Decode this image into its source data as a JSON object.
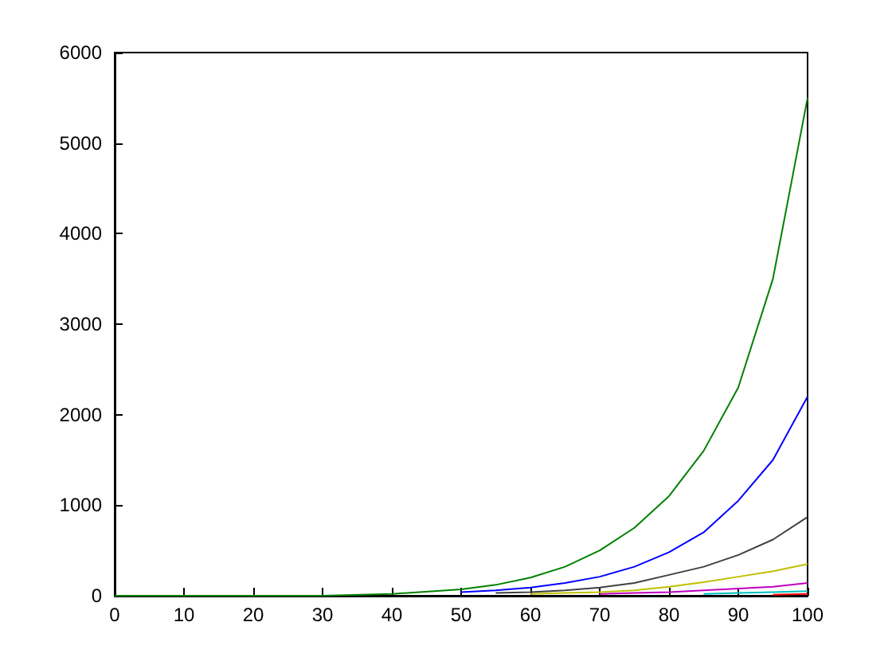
{
  "chart_data": {
    "type": "line",
    "x": [
      0,
      10,
      20,
      30,
      40,
      50,
      55,
      60,
      65,
      70,
      75,
      80,
      85,
      90,
      95,
      100
    ],
    "series": [
      {
        "color": "#ff0000",
        "values": [
          null,
          null,
          null,
          null,
          null,
          null,
          null,
          null,
          null,
          null,
          null,
          null,
          null,
          null,
          10,
          20
        ]
      },
      {
        "color": "#00bfbf",
        "values": [
          null,
          null,
          null,
          null,
          null,
          null,
          null,
          null,
          null,
          null,
          null,
          null,
          20,
          30,
          40,
          50
        ]
      },
      {
        "color": "#bf00bf",
        "values": [
          null,
          null,
          null,
          null,
          null,
          null,
          null,
          null,
          null,
          20,
          30,
          40,
          60,
          80,
          100,
          140
        ]
      },
      {
        "color": "#bfbf00",
        "values": [
          null,
          null,
          null,
          null,
          null,
          null,
          null,
          20,
          30,
          40,
          60,
          100,
          150,
          210,
          270,
          350
        ]
      },
      {
        "color": "#404040",
        "values": [
          null,
          null,
          null,
          null,
          null,
          null,
          30,
          40,
          60,
          90,
          140,
          230,
          320,
          450,
          620,
          870
        ]
      },
      {
        "color": "#0000ff",
        "values": [
          null,
          null,
          null,
          null,
          null,
          40,
          60,
          90,
          140,
          210,
          320,
          480,
          700,
          1050,
          1500,
          2200
        ]
      },
      {
        "color": "#008000",
        "values": [
          0,
          0,
          0,
          0,
          20,
          70,
          120,
          200,
          320,
          500,
          750,
          1100,
          1600,
          2300,
          3500,
          5500
        ]
      }
    ],
    "xlim": [
      0,
      100
    ],
    "xticks": [
      0,
      10,
      20,
      30,
      40,
      50,
      60,
      70,
      80,
      90,
      100
    ],
    "ylim": [
      0,
      6000
    ],
    "yticks": [
      0,
      1000,
      2000,
      3000,
      4000,
      5000,
      6000
    ],
    "grid": false,
    "marker": "none",
    "line_style": "solid"
  }
}
